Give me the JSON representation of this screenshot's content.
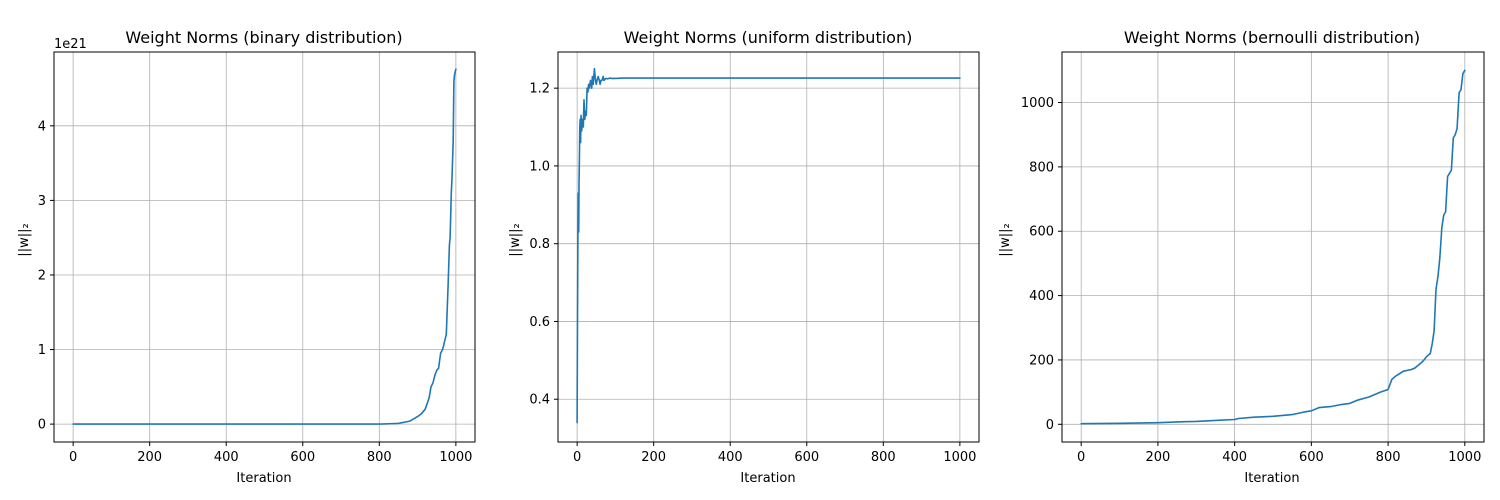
{
  "colors": {
    "series": "#1f77b4",
    "grid": "#b0b0b0"
  },
  "chart_data": [
    {
      "type": "line",
      "title": "Weight Norms (binary distribution)",
      "xlabel": "Iteration",
      "ylabel": "||w||₂",
      "offset_text": "1e21",
      "xlim": [
        -50,
        1050
      ],
      "ylim": [
        -0.24,
        4.99
      ],
      "xticks": [
        0,
        200,
        400,
        600,
        800,
        1000
      ],
      "xtick_labels": [
        "0",
        "200",
        "400",
        "600",
        "800",
        "1000"
      ],
      "yticks": [
        0,
        1,
        2,
        3,
        4
      ],
      "ytick_labels": [
        "0",
        "1",
        "2",
        "3",
        "4"
      ],
      "grid": true,
      "series": [
        {
          "x": [
            0,
            800,
            850,
            880,
            900,
            910,
            920,
            930,
            935,
            940,
            945,
            950,
            955,
            960,
            965,
            968,
            970,
            975,
            980,
            983,
            985,
            988,
            990,
            993,
            995,
            997,
            1000
          ],
          "y": [
            0,
            0,
            0.01,
            0.04,
            0.1,
            0.14,
            0.2,
            0.35,
            0.5,
            0.55,
            0.65,
            0.72,
            0.75,
            0.95,
            1.0,
            1.05,
            1.1,
            1.2,
            1.9,
            2.4,
            2.5,
            3.1,
            3.3,
            3.8,
            4.6,
            4.7,
            4.76
          ]
        }
      ]
    },
    {
      "type": "line",
      "title": "Weight Norms (uniform distribution)",
      "xlabel": "Iteration",
      "ylabel": "||w||₂",
      "xlim": [
        -50,
        1050
      ],
      "ylim": [
        0.29,
        1.293
      ],
      "xticks": [
        0,
        200,
        400,
        600,
        800,
        1000
      ],
      "xtick_labels": [
        "0",
        "200",
        "400",
        "600",
        "800",
        "1000"
      ],
      "yticks": [
        0.4,
        0.6,
        0.8,
        1.0,
        1.2
      ],
      "ytick_labels": [
        "0.4",
        "0.6",
        "0.8",
        "1.0",
        "1.2"
      ],
      "grid": true,
      "series": [
        {
          "x": [
            0,
            1,
            2,
            3,
            4,
            5,
            6,
            7,
            8,
            9,
            10,
            12,
            14,
            16,
            18,
            20,
            22,
            24,
            26,
            28,
            30,
            32,
            35,
            38,
            40,
            42,
            45,
            48,
            50,
            52,
            55,
            58,
            60,
            62,
            65,
            68,
            70,
            75,
            80,
            85,
            90,
            100,
            120,
            150,
            200,
            300,
            500,
            700,
            1000
          ],
          "y": [
            0.34,
            0.6,
            0.82,
            0.93,
            0.83,
            0.95,
            1.02,
            1.1,
            1.12,
            1.06,
            1.13,
            1.09,
            1.12,
            1.1,
            1.17,
            1.12,
            1.14,
            1.13,
            1.2,
            1.19,
            1.21,
            1.2,
            1.22,
            1.2,
            1.23,
            1.21,
            1.25,
            1.22,
            1.21,
            1.22,
            1.23,
            1.22,
            1.21,
            1.22,
            1.22,
            1.23,
            1.22,
            1.225,
            1.224,
            1.226,
            1.225,
            1.225,
            1.226,
            1.226,
            1.226,
            1.226,
            1.226,
            1.226,
            1.226
          ]
        }
      ]
    },
    {
      "type": "line",
      "title": "Weight Norms (bernoulli distribution)",
      "xlabel": "Iteration",
      "ylabel": "||w||₂",
      "xlim": [
        -50,
        1050
      ],
      "ylim": [
        -55,
        1157
      ],
      "xticks": [
        0,
        200,
        400,
        600,
        800,
        1000
      ],
      "xtick_labels": [
        "0",
        "200",
        "400",
        "600",
        "800",
        "1000"
      ],
      "yticks": [
        0,
        200,
        400,
        600,
        800,
        1000
      ],
      "ytick_labels": [
        "0",
        "200",
        "400",
        "600",
        "800",
        "1000"
      ],
      "grid": true,
      "series": [
        {
          "x": [
            0,
            100,
            200,
            270,
            300,
            350,
            400,
            410,
            450,
            500,
            550,
            580,
            600,
            620,
            650,
            680,
            700,
            720,
            750,
            780,
            800,
            810,
            820,
            840,
            860,
            870,
            880,
            890,
            900,
            910,
            915,
            920,
            925,
            930,
            935,
            940,
            945,
            950,
            955,
            960,
            965,
            970,
            975,
            980,
            985,
            990,
            995,
            1000
          ],
          "y": [
            2,
            3,
            5,
            8,
            9,
            12,
            15,
            18,
            22,
            25,
            30,
            38,
            42,
            52,
            55,
            62,
            65,
            75,
            85,
            100,
            108,
            140,
            150,
            165,
            170,
            175,
            185,
            195,
            210,
            220,
            250,
            290,
            420,
            460,
            520,
            610,
            650,
            660,
            770,
            780,
            790,
            890,
            900,
            920,
            1030,
            1040,
            1090,
            1100
          ]
        }
      ]
    }
  ]
}
